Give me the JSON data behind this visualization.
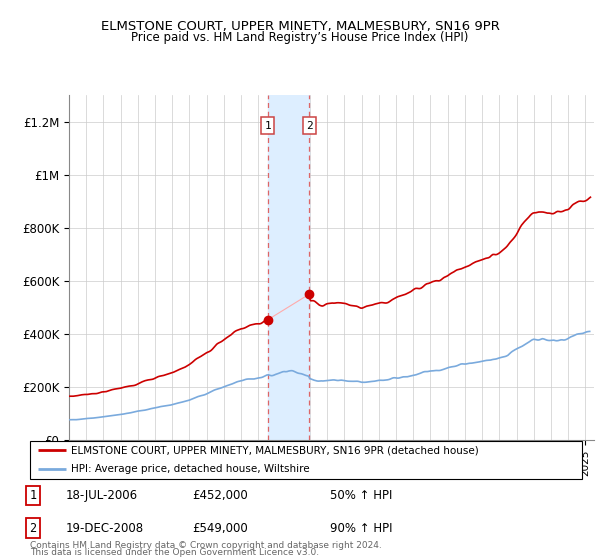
{
  "title": "ELMSTONE COURT, UPPER MINETY, MALMESBURY, SN16 9PR",
  "subtitle": "Price paid vs. HM Land Registry’s House Price Index (HPI)",
  "legend_line1": "ELMSTONE COURT, UPPER MINETY, MALMESBURY, SN16 9PR (detached house)",
  "legend_line2": "HPI: Average price, detached house, Wiltshire",
  "footnote1": "Contains HM Land Registry data © Crown copyright and database right 2024.",
  "footnote2": "This data is licensed under the Open Government Licence v3.0.",
  "table": [
    {
      "num": "1",
      "date": "18-JUL-2006",
      "price": "£452,000",
      "pct": "50% ↑ HPI"
    },
    {
      "num": "2",
      "date": "19-DEC-2008",
      "price": "£549,000",
      "pct": "90% ↑ HPI"
    }
  ],
  "t1_year": 2006.54,
  "t1_price": 452000,
  "t2_year": 2008.96,
  "t2_price": 549000,
  "highlight_x1": 2006.54,
  "highlight_x2": 2008.96,
  "ylim": [
    0,
    1300000
  ],
  "xlim_start": 1995.0,
  "xlim_end": 2025.5,
  "red_line_color": "#cc0000",
  "blue_line_color": "#7aaadd",
  "highlight_fill": "#ddeeff",
  "grid_color": "#cccccc",
  "hpi_nodes_x": [
    1995,
    1995.5,
    1996,
    1996.5,
    1997,
    1997.5,
    1998,
    1998.5,
    1999,
    1999.5,
    2000,
    2000.5,
    2001,
    2001.5,
    2002,
    2002.5,
    2003,
    2003.5,
    2004,
    2004.5,
    2005,
    2005.5,
    2006,
    2006.25,
    2006.54,
    2006.75,
    2007,
    2007.25,
    2007.5,
    2007.75,
    2008,
    2008.25,
    2008.5,
    2008.75,
    2008.96,
    2009,
    2009.25,
    2009.5,
    2009.75,
    2010,
    2010.5,
    2011,
    2011.5,
    2012,
    2012.5,
    2013,
    2013.5,
    2014,
    2014.5,
    2015,
    2015.5,
    2016,
    2016.5,
    2017,
    2017.5,
    2018,
    2018.5,
    2019,
    2019.5,
    2020,
    2020.5,
    2021,
    2021.5,
    2022,
    2022.25,
    2022.5,
    2022.75,
    2023,
    2023.25,
    2023.5,
    2023.75,
    2024,
    2024.25,
    2024.5,
    2024.75,
    2025,
    2025.3
  ],
  "blue_nodes_y": [
    75000,
    76000,
    79000,
    82000,
    86000,
    90000,
    95000,
    100000,
    107000,
    113000,
    120000,
    126000,
    133000,
    140000,
    150000,
    162000,
    175000,
    188000,
    200000,
    212000,
    222000,
    228000,
    234000,
    237000,
    240000,
    242000,
    248000,
    252000,
    258000,
    260000,
    258000,
    254000,
    248000,
    242000,
    238000,
    230000,
    225000,
    222000,
    220000,
    222000,
    224000,
    222000,
    220000,
    218000,
    220000,
    222000,
    226000,
    232000,
    238000,
    245000,
    252000,
    258000,
    262000,
    270000,
    278000,
    285000,
    290000,
    296000,
    302000,
    308000,
    318000,
    338000,
    360000,
    375000,
    378000,
    380000,
    378000,
    376000,
    374000,
    375000,
    377000,
    382000,
    388000,
    395000,
    400000,
    405000,
    410000
  ],
  "red_hpi_nodes_x": [
    1995,
    1995.5,
    1996,
    1996.5,
    1997,
    1997.5,
    1998,
    1998.5,
    1999,
    1999.5,
    2000,
    2000.5,
    2001,
    2001.5,
    2002,
    2002.5,
    2003,
    2003.5,
    2004,
    2004.5,
    2005,
    2005.5,
    2006,
    2006.25,
    2006.54
  ],
  "red_seg1_hpi": [
    100,
    101,
    104,
    107,
    111,
    115,
    119,
    124,
    130,
    136,
    143,
    149,
    156,
    163,
    173,
    187,
    202,
    217,
    231,
    244,
    256,
    263,
    270,
    273,
    277
  ],
  "red_seg2_hpi_x": [
    2008.96,
    2009,
    2009.25,
    2009.5,
    2009.75,
    2010,
    2010.5,
    2011,
    2011.5,
    2012,
    2012.5,
    2013,
    2013.5,
    2014,
    2014.5,
    2015,
    2015.5,
    2016,
    2016.5,
    2017,
    2017.5,
    2018,
    2018.5,
    2019,
    2019.5,
    2020,
    2020.5,
    2021,
    2021.5,
    2022,
    2022.25,
    2022.5,
    2022.75,
    2023,
    2023.25,
    2023.5,
    2023.75,
    2024,
    2024.25,
    2024.5,
    2024.75,
    2025,
    2025.3
  ],
  "red_seg2_hpi": [
    277,
    269,
    263,
    258,
    254,
    258,
    260,
    258,
    256,
    253,
    256,
    258,
    263,
    270,
    277,
    285,
    292,
    299,
    304,
    313,
    322,
    330,
    336,
    343,
    349,
    357,
    368,
    392,
    416,
    434,
    436,
    438,
    435,
    432,
    430,
    431,
    433,
    438,
    445,
    452,
    457,
    461,
    465
  ]
}
